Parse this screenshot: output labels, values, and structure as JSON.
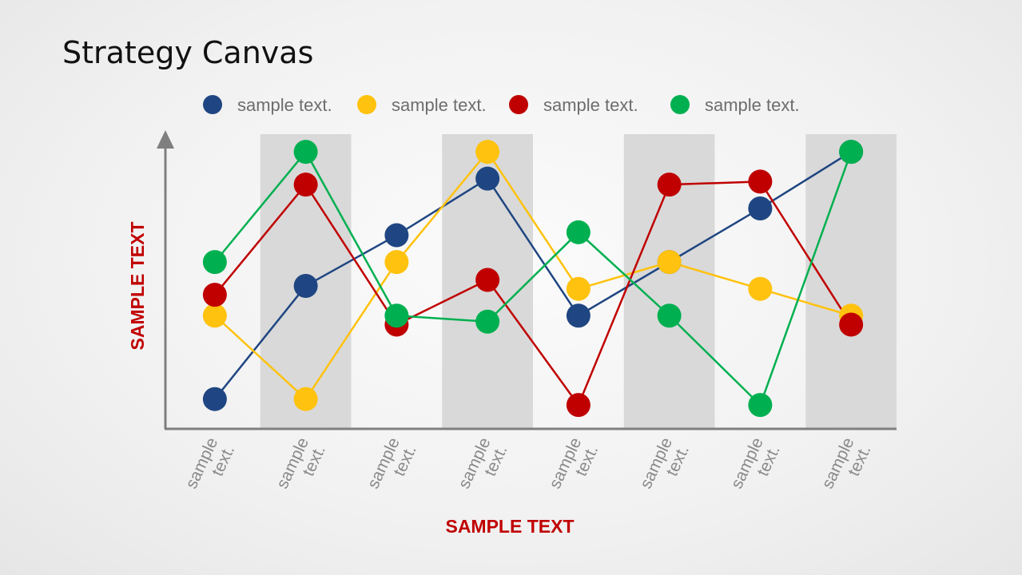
{
  "slide": {
    "title": "Strategy Canvas"
  },
  "colors": {
    "blue": "#1f4682",
    "yellow": "#ffc20e",
    "red": "#c00000",
    "green": "#00b050",
    "band": "#d9d9d9",
    "axis": "#7f7f7f",
    "axis_title": "#c00000"
  },
  "chart_data": {
    "type": "line",
    "title": "",
    "xlabel": "SAMPLE TEXT",
    "ylabel": "SAMPLE TEXT",
    "categories": [
      "sample text.",
      "sample text.",
      "sample text.",
      "sample text.",
      "sample text.",
      "sample text.",
      "sample text.",
      "sample text."
    ],
    "ylim": [
      0,
      10
    ],
    "grid": false,
    "alternating_bands": true,
    "legend_position": "top",
    "series": [
      {
        "name": "sample text.",
        "color": "#1f4682",
        "values": [
          1.0,
          4.8,
          6.5,
          8.4,
          3.8,
          5.6,
          7.4,
          9.3
        ]
      },
      {
        "name": "sample text.",
        "color": "#ffc20e",
        "values": [
          3.8,
          1.0,
          5.6,
          9.3,
          4.7,
          5.6,
          4.7,
          3.8
        ]
      },
      {
        "name": "sample text.",
        "color": "#c00000",
        "values": [
          4.5,
          8.2,
          3.5,
          5.0,
          0.8,
          8.2,
          8.3,
          3.5
        ]
      },
      {
        "name": "sample text.",
        "color": "#00b050",
        "values": [
          5.6,
          9.3,
          3.8,
          3.6,
          6.6,
          3.8,
          0.8,
          9.3
        ]
      }
    ]
  }
}
